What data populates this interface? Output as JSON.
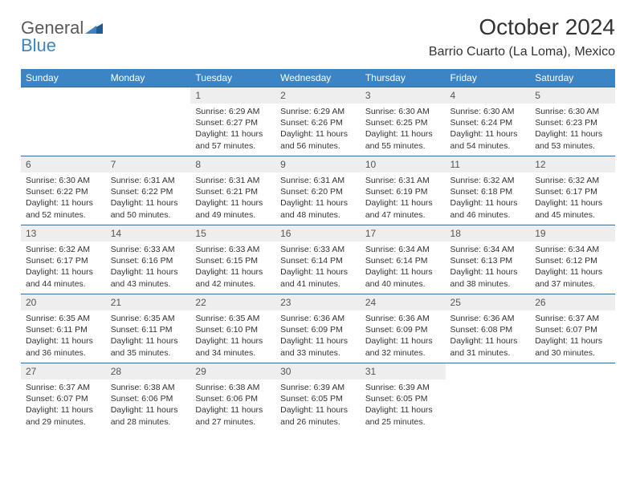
{
  "brand": {
    "word1": "General",
    "word2": "Blue"
  },
  "title": "October 2024",
  "location": "Barrio Cuarto (La Loma), Mexico",
  "colors": {
    "header_bg": "#3d84c4",
    "header_text": "#ffffff",
    "daynum_bg": "#eeeeee",
    "row_border": "#3d6a94",
    "logo_gray": "#5a5a5a",
    "logo_blue": "#3d84c4"
  },
  "day_headers": [
    "Sunday",
    "Monday",
    "Tuesday",
    "Wednesday",
    "Thursday",
    "Friday",
    "Saturday"
  ],
  "weeks": [
    [
      {
        "n": "",
        "sunrise": "",
        "sunset": "",
        "daylight": ""
      },
      {
        "n": "",
        "sunrise": "",
        "sunset": "",
        "daylight": ""
      },
      {
        "n": "1",
        "sunrise": "Sunrise: 6:29 AM",
        "sunset": "Sunset: 6:27 PM",
        "daylight": "Daylight: 11 hours and 57 minutes."
      },
      {
        "n": "2",
        "sunrise": "Sunrise: 6:29 AM",
        "sunset": "Sunset: 6:26 PM",
        "daylight": "Daylight: 11 hours and 56 minutes."
      },
      {
        "n": "3",
        "sunrise": "Sunrise: 6:30 AM",
        "sunset": "Sunset: 6:25 PM",
        "daylight": "Daylight: 11 hours and 55 minutes."
      },
      {
        "n": "4",
        "sunrise": "Sunrise: 6:30 AM",
        "sunset": "Sunset: 6:24 PM",
        "daylight": "Daylight: 11 hours and 54 minutes."
      },
      {
        "n": "5",
        "sunrise": "Sunrise: 6:30 AM",
        "sunset": "Sunset: 6:23 PM",
        "daylight": "Daylight: 11 hours and 53 minutes."
      }
    ],
    [
      {
        "n": "6",
        "sunrise": "Sunrise: 6:30 AM",
        "sunset": "Sunset: 6:22 PM",
        "daylight": "Daylight: 11 hours and 52 minutes."
      },
      {
        "n": "7",
        "sunrise": "Sunrise: 6:31 AM",
        "sunset": "Sunset: 6:22 PM",
        "daylight": "Daylight: 11 hours and 50 minutes."
      },
      {
        "n": "8",
        "sunrise": "Sunrise: 6:31 AM",
        "sunset": "Sunset: 6:21 PM",
        "daylight": "Daylight: 11 hours and 49 minutes."
      },
      {
        "n": "9",
        "sunrise": "Sunrise: 6:31 AM",
        "sunset": "Sunset: 6:20 PM",
        "daylight": "Daylight: 11 hours and 48 minutes."
      },
      {
        "n": "10",
        "sunrise": "Sunrise: 6:31 AM",
        "sunset": "Sunset: 6:19 PM",
        "daylight": "Daylight: 11 hours and 47 minutes."
      },
      {
        "n": "11",
        "sunrise": "Sunrise: 6:32 AM",
        "sunset": "Sunset: 6:18 PM",
        "daylight": "Daylight: 11 hours and 46 minutes."
      },
      {
        "n": "12",
        "sunrise": "Sunrise: 6:32 AM",
        "sunset": "Sunset: 6:17 PM",
        "daylight": "Daylight: 11 hours and 45 minutes."
      }
    ],
    [
      {
        "n": "13",
        "sunrise": "Sunrise: 6:32 AM",
        "sunset": "Sunset: 6:17 PM",
        "daylight": "Daylight: 11 hours and 44 minutes."
      },
      {
        "n": "14",
        "sunrise": "Sunrise: 6:33 AM",
        "sunset": "Sunset: 6:16 PM",
        "daylight": "Daylight: 11 hours and 43 minutes."
      },
      {
        "n": "15",
        "sunrise": "Sunrise: 6:33 AM",
        "sunset": "Sunset: 6:15 PM",
        "daylight": "Daylight: 11 hours and 42 minutes."
      },
      {
        "n": "16",
        "sunrise": "Sunrise: 6:33 AM",
        "sunset": "Sunset: 6:14 PM",
        "daylight": "Daylight: 11 hours and 41 minutes."
      },
      {
        "n": "17",
        "sunrise": "Sunrise: 6:34 AM",
        "sunset": "Sunset: 6:14 PM",
        "daylight": "Daylight: 11 hours and 40 minutes."
      },
      {
        "n": "18",
        "sunrise": "Sunrise: 6:34 AM",
        "sunset": "Sunset: 6:13 PM",
        "daylight": "Daylight: 11 hours and 38 minutes."
      },
      {
        "n": "19",
        "sunrise": "Sunrise: 6:34 AM",
        "sunset": "Sunset: 6:12 PM",
        "daylight": "Daylight: 11 hours and 37 minutes."
      }
    ],
    [
      {
        "n": "20",
        "sunrise": "Sunrise: 6:35 AM",
        "sunset": "Sunset: 6:11 PM",
        "daylight": "Daylight: 11 hours and 36 minutes."
      },
      {
        "n": "21",
        "sunrise": "Sunrise: 6:35 AM",
        "sunset": "Sunset: 6:11 PM",
        "daylight": "Daylight: 11 hours and 35 minutes."
      },
      {
        "n": "22",
        "sunrise": "Sunrise: 6:35 AM",
        "sunset": "Sunset: 6:10 PM",
        "daylight": "Daylight: 11 hours and 34 minutes."
      },
      {
        "n": "23",
        "sunrise": "Sunrise: 6:36 AM",
        "sunset": "Sunset: 6:09 PM",
        "daylight": "Daylight: 11 hours and 33 minutes."
      },
      {
        "n": "24",
        "sunrise": "Sunrise: 6:36 AM",
        "sunset": "Sunset: 6:09 PM",
        "daylight": "Daylight: 11 hours and 32 minutes."
      },
      {
        "n": "25",
        "sunrise": "Sunrise: 6:36 AM",
        "sunset": "Sunset: 6:08 PM",
        "daylight": "Daylight: 11 hours and 31 minutes."
      },
      {
        "n": "26",
        "sunrise": "Sunrise: 6:37 AM",
        "sunset": "Sunset: 6:07 PM",
        "daylight": "Daylight: 11 hours and 30 minutes."
      }
    ],
    [
      {
        "n": "27",
        "sunrise": "Sunrise: 6:37 AM",
        "sunset": "Sunset: 6:07 PM",
        "daylight": "Daylight: 11 hours and 29 minutes."
      },
      {
        "n": "28",
        "sunrise": "Sunrise: 6:38 AM",
        "sunset": "Sunset: 6:06 PM",
        "daylight": "Daylight: 11 hours and 28 minutes."
      },
      {
        "n": "29",
        "sunrise": "Sunrise: 6:38 AM",
        "sunset": "Sunset: 6:06 PM",
        "daylight": "Daylight: 11 hours and 27 minutes."
      },
      {
        "n": "30",
        "sunrise": "Sunrise: 6:39 AM",
        "sunset": "Sunset: 6:05 PM",
        "daylight": "Daylight: 11 hours and 26 minutes."
      },
      {
        "n": "31",
        "sunrise": "Sunrise: 6:39 AM",
        "sunset": "Sunset: 6:05 PM",
        "daylight": "Daylight: 11 hours and 25 minutes."
      },
      {
        "n": "",
        "sunrise": "",
        "sunset": "",
        "daylight": ""
      },
      {
        "n": "",
        "sunrise": "",
        "sunset": "",
        "daylight": ""
      }
    ]
  ]
}
